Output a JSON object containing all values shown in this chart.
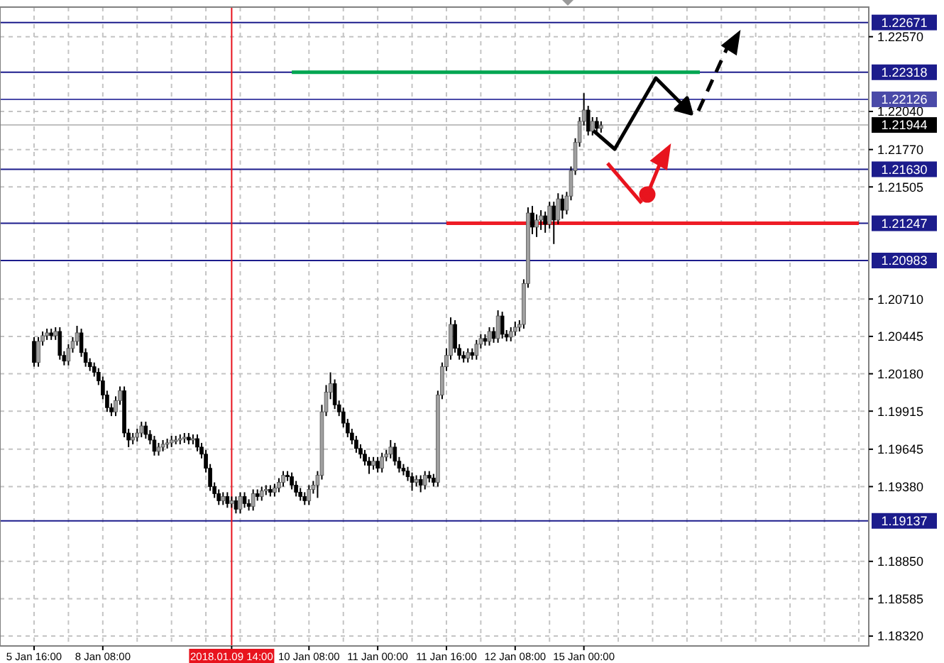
{
  "chart_data": {
    "type": "candlestick",
    "categories": [
      "5 Jan 16:00",
      null,
      null,
      null,
      null,
      null,
      null,
      null,
      null,
      null,
      null,
      null,
      null,
      null,
      null,
      null,
      "8 Jan 08:00",
      null,
      null,
      null,
      null,
      null,
      null,
      null,
      null,
      null,
      null,
      null,
      null,
      null,
      null,
      null,
      null,
      null,
      null,
      null,
      null,
      null,
      null,
      null,
      null,
      null,
      null,
      null,
      null,
      null,
      "2018.01.09 14:00",
      null,
      null,
      null,
      null,
      null,
      null,
      null,
      null,
      null,
      null,
      null,
      null,
      null,
      null,
      null,
      null,
      null,
      "10 Jan 08:00",
      null,
      null,
      null,
      null,
      null,
      null,
      null,
      null,
      null,
      null,
      null,
      null,
      null,
      null,
      null,
      "11 Jan 00:00",
      null,
      null,
      null,
      null,
      null,
      null,
      null,
      null,
      null,
      null,
      null,
      null,
      null,
      null,
      null,
      "11 Jan 16:00",
      null,
      null,
      null,
      null,
      null,
      null,
      null,
      null,
      null,
      null,
      null,
      null,
      null,
      null,
      null,
      "12 Jan 08:00",
      null,
      null,
      null,
      null,
      null,
      null,
      null,
      null,
      null,
      null,
      null,
      null,
      null,
      null,
      null,
      "15 Jan 00:00",
      null,
      null,
      null,
      null,
      null,
      null,
      null,
      null,
      null,
      null,
      null,
      null,
      null,
      null,
      null,
      null,
      null,
      null,
      null,
      null,
      null,
      null,
      null,
      null,
      null,
      null,
      null,
      null,
      null,
      null,
      null,
      null,
      null,
      null,
      null,
      null,
      null,
      null,
      null,
      null,
      null,
      null,
      null,
      null,
      null,
      null,
      null,
      null,
      null,
      null,
      null,
      null,
      null,
      null,
      null,
      null,
      null,
      null,
      null,
      null,
      null,
      null,
      null,
      null,
      null
    ],
    "ohlc": [
      [
        1.2041,
        1.2044,
        1.2023,
        1.2026
      ],
      [
        1.2026,
        1.2044,
        1.2023,
        1.2041
      ],
      [
        1.2041,
        1.2048,
        1.2038,
        1.2045
      ],
      [
        1.2045,
        1.205,
        1.2042,
        1.2047
      ],
      [
        1.2047,
        1.205,
        1.2042,
        1.2045
      ],
      [
        1.2045,
        1.2051,
        1.2042,
        1.2048
      ],
      [
        1.2048,
        1.2051,
        1.2028,
        1.2031
      ],
      [
        1.2031,
        1.2034,
        1.2024,
        1.2027
      ],
      [
        1.2027,
        1.2039,
        1.2024,
        1.2036
      ],
      [
        1.2036,
        1.2044,
        1.2033,
        1.2041
      ],
      [
        1.2041,
        1.2052,
        1.2038,
        1.2047
      ],
      [
        1.2047,
        1.205,
        1.203,
        1.2033
      ],
      [
        1.2033,
        1.2036,
        1.2023,
        1.2026
      ],
      [
        1.2026,
        1.2029,
        1.202,
        1.2023
      ],
      [
        1.2023,
        1.2026,
        1.2016,
        1.2019
      ],
      [
        1.2019,
        1.2022,
        1.201,
        1.2013
      ],
      [
        1.2013,
        1.2016,
        1.2,
        1.2003
      ],
      [
        1.2003,
        1.2006,
        1.1991,
        1.1994
      ],
      [
        1.1994,
        1.1997,
        1.1988,
        1.1991
      ],
      [
        1.1991,
        1.2002,
        1.1988,
        1.1999
      ],
      [
        1.1999,
        1.2009,
        1.1996,
        1.2006
      ],
      [
        1.2006,
        1.2009,
        1.1973,
        1.1976
      ],
      [
        1.1976,
        1.1979,
        1.1966,
        1.1971
      ],
      [
        1.1971,
        1.1976,
        1.1968,
        1.1973
      ],
      [
        1.1973,
        1.1979,
        1.197,
        1.1976
      ],
      [
        1.1976,
        1.1984,
        1.1973,
        1.1981
      ],
      [
        1.1981,
        1.1984,
        1.1972,
        1.1975
      ],
      [
        1.1975,
        1.1978,
        1.1968,
        1.1971
      ],
      [
        1.1971,
        1.1974,
        1.196,
        1.1963
      ],
      [
        1.1963,
        1.1969,
        1.196,
        1.1966
      ],
      [
        1.1966,
        1.1971,
        1.1963,
        1.1968
      ],
      [
        1.1968,
        1.1972,
        1.1965,
        1.1969
      ],
      [
        1.1969,
        1.1974,
        1.1966,
        1.1971
      ],
      [
        1.1971,
        1.1974,
        1.1968,
        1.1971
      ],
      [
        1.1971,
        1.1975,
        1.1968,
        1.1972
      ],
      [
        1.1972,
        1.1976,
        1.1969,
        1.1973
      ],
      [
        1.1973,
        1.1976,
        1.1968,
        1.1971
      ],
      [
        1.1971,
        1.1975,
        1.1968,
        1.1972
      ],
      [
        1.1972,
        1.1975,
        1.1963,
        1.1966
      ],
      [
        1.1966,
        1.1969,
        1.1958,
        1.1961
      ],
      [
        1.1961,
        1.1964,
        1.1948,
        1.1951
      ],
      [
        1.1951,
        1.1954,
        1.1935,
        1.1938
      ],
      [
        1.1938,
        1.1941,
        1.193,
        1.1933
      ],
      [
        1.1933,
        1.1936,
        1.1925,
        1.1928
      ],
      [
        1.1928,
        1.1934,
        1.1925,
        1.1931
      ],
      [
        1.1931,
        1.1934,
        1.1923,
        1.1926
      ],
      [
        1.1926,
        1.1931,
        1.1923,
        1.1928
      ],
      [
        1.1928,
        1.1931,
        1.1919,
        1.1922
      ],
      [
        1.1922,
        1.1934,
        1.1919,
        1.1931
      ],
      [
        1.1931,
        1.1934,
        1.1923,
        1.1926
      ],
      [
        1.1926,
        1.1929,
        1.1921,
        1.1924
      ],
      [
        1.1924,
        1.1936,
        1.1921,
        1.1933
      ],
      [
        1.1933,
        1.1936,
        1.1928,
        1.1931
      ],
      [
        1.1931,
        1.1938,
        1.1928,
        1.1935
      ],
      [
        1.1935,
        1.1939,
        1.1932,
        1.1936
      ],
      [
        1.1936,
        1.1939,
        1.1931,
        1.1934
      ],
      [
        1.1934,
        1.194,
        1.1931,
        1.1937
      ],
      [
        1.1937,
        1.1944,
        1.1934,
        1.1941
      ],
      [
        1.1941,
        1.1949,
        1.1938,
        1.1946
      ],
      [
        1.1946,
        1.1949,
        1.1942,
        1.1945
      ],
      [
        1.1945,
        1.1948,
        1.1936,
        1.1939
      ],
      [
        1.1939,
        1.1942,
        1.1931,
        1.1934
      ],
      [
        1.1934,
        1.1937,
        1.1928,
        1.1931
      ],
      [
        1.1931,
        1.1934,
        1.1925,
        1.1928
      ],
      [
        1.1928,
        1.1939,
        1.1925,
        1.1936
      ],
      [
        1.1936,
        1.1942,
        1.1933,
        1.1939
      ],
      [
        1.1939,
        1.1949,
        1.193,
        1.1946
      ],
      [
        1.1946,
        1.1996,
        1.1943,
        1.1991
      ],
      [
        1.1991,
        1.201,
        1.1988,
        1.2005
      ],
      [
        1.2005,
        1.2019,
        1.2,
        1.2011
      ],
      [
        1.2011,
        1.2014,
        1.1993,
        1.1996
      ],
      [
        1.1996,
        1.1999,
        1.1988,
        1.1991
      ],
      [
        1.1991,
        1.1994,
        1.198,
        1.1983
      ],
      [
        1.1983,
        1.1986,
        1.1973,
        1.1976
      ],
      [
        1.1976,
        1.1979,
        1.1968,
        1.1971
      ],
      [
        1.1971,
        1.1974,
        1.1962,
        1.1965
      ],
      [
        1.1965,
        1.1968,
        1.1958,
        1.1961
      ],
      [
        1.1961,
        1.1964,
        1.1953,
        1.1956
      ],
      [
        1.1956,
        1.1959,
        1.1947,
        1.1953
      ],
      [
        1.1953,
        1.1959,
        1.195,
        1.1956
      ],
      [
        1.1956,
        1.1959,
        1.1948,
        1.1951
      ],
      [
        1.1951,
        1.1962,
        1.1948,
        1.1959
      ],
      [
        1.1959,
        1.1964,
        1.1956,
        1.1961
      ],
      [
        1.1961,
        1.1971,
        1.1958,
        1.1966
      ],
      [
        1.1966,
        1.1969,
        1.1953,
        1.1956
      ],
      [
        1.1956,
        1.1959,
        1.1948,
        1.1951
      ],
      [
        1.1951,
        1.1954,
        1.1946,
        1.1949
      ],
      [
        1.1949,
        1.1952,
        1.1942,
        1.1945
      ],
      [
        1.1945,
        1.1948,
        1.1935,
        1.1941
      ],
      [
        1.1941,
        1.1946,
        1.1938,
        1.1943
      ],
      [
        1.1943,
        1.1946,
        1.1934,
        1.1939
      ],
      [
        1.1939,
        1.1949,
        1.1936,
        1.1946
      ],
      [
        1.1946,
        1.1949,
        1.1941,
        1.1944
      ],
      [
        1.1944,
        1.1947,
        1.1938,
        1.1941
      ],
      [
        1.1941,
        1.2006,
        1.1938,
        1.2003
      ],
      [
        1.2003,
        1.2026,
        1.2,
        1.2023
      ],
      [
        1.2023,
        1.2036,
        1.202,
        1.2031
      ],
      [
        1.2031,
        1.2058,
        1.2028,
        1.2053
      ],
      [
        1.2053,
        1.2056,
        1.2033,
        1.2036
      ],
      [
        1.2036,
        1.2039,
        1.2028,
        1.2031
      ],
      [
        1.2031,
        1.2034,
        1.2026,
        1.2029
      ],
      [
        1.2029,
        1.2036,
        1.2026,
        1.2033
      ],
      [
        1.2033,
        1.2036,
        1.2028,
        1.2031
      ],
      [
        1.2031,
        1.2042,
        1.2028,
        1.2039
      ],
      [
        1.2039,
        1.2046,
        1.2036,
        1.2043
      ],
      [
        1.2043,
        1.2046,
        1.2038,
        1.2041
      ],
      [
        1.2041,
        1.2051,
        1.2038,
        1.2048
      ],
      [
        1.2048,
        1.2051,
        1.204,
        1.2043
      ],
      [
        1.2043,
        1.2063,
        1.204,
        1.2059
      ],
      [
        1.2059,
        1.2062,
        1.2043,
        1.2046
      ],
      [
        1.2046,
        1.2049,
        1.2041,
        1.2044
      ],
      [
        1.2044,
        1.2051,
        1.2041,
        1.2048
      ],
      [
        1.2048,
        1.2055,
        1.2045,
        1.2051
      ],
      [
        1.2051,
        1.2056,
        1.2048,
        1.2053
      ],
      [
        1.2053,
        1.2085,
        1.205,
        1.2082
      ],
      [
        1.2082,
        1.2136,
        1.2079,
        1.2132
      ],
      [
        1.2132,
        1.2137,
        1.2117,
        1.2122
      ],
      [
        1.2122,
        1.2131,
        1.2115,
        1.2127
      ],
      [
        1.2127,
        1.2134,
        1.212,
        1.213
      ],
      [
        1.213,
        1.2133,
        1.2118,
        1.2124
      ],
      [
        1.2124,
        1.214,
        1.2121,
        1.2137
      ],
      [
        1.2137,
        1.214,
        1.211,
        1.2127
      ],
      [
        1.2127,
        1.2146,
        1.2124,
        1.2142
      ],
      [
        1.2142,
        1.2145,
        1.2128,
        1.2134
      ],
      [
        1.2134,
        1.2147,
        1.2131,
        1.2144
      ],
      [
        1.2144,
        1.2165,
        1.2141,
        1.2162
      ],
      [
        1.2162,
        1.2185,
        1.2159,
        1.2182
      ],
      [
        1.2182,
        1.22,
        1.2179,
        1.2197
      ],
      [
        1.2197,
        1.2217,
        1.2194,
        1.2205
      ],
      [
        1.2205,
        1.2208,
        1.2187,
        1.219
      ],
      [
        1.219,
        1.22,
        1.2187,
        1.2197
      ],
      [
        1.2197,
        1.22,
        1.2189,
        1.2192
      ],
      [
        1.2192,
        1.2197,
        1.2189,
        1.2194
      ],
      null,
      null,
      null,
      null,
      null,
      null,
      null,
      null,
      null,
      null,
      null,
      null,
      null,
      null,
      null,
      null,
      null,
      null,
      null,
      null,
      null,
      null,
      null,
      null,
      null,
      null,
      null,
      null,
      null,
      null,
      null,
      null,
      null,
      null,
      null,
      null,
      null,
      null,
      null,
      null,
      null,
      null,
      null,
      null,
      null,
      null,
      null,
      null,
      null,
      null,
      null,
      null,
      null,
      null,
      null,
      null,
      null,
      null,
      null,
      null,
      null
    ],
    "series": [
      {
        "type": "line",
        "color": "#00a651",
        "values": [
          null,
          null,
          null,
          null,
          null,
          null,
          null,
          null,
          null,
          null,
          null,
          null,
          null,
          null,
          null,
          null,
          null,
          null,
          null,
          null,
          null,
          null,
          null,
          null,
          null,
          null,
          null,
          null,
          null,
          null,
          null,
          null,
          null,
          null,
          null,
          null,
          null,
          null,
          null,
          null,
          null,
          null,
          null,
          null,
          null,
          null,
          null,
          null,
          null,
          null,
          null,
          null,
          null,
          null,
          null,
          null,
          null,
          null,
          null,
          null,
          1.22318,
          1.22318,
          1.22318,
          1.22318,
          1.22318,
          1.22318,
          1.22318,
          1.22318,
          1.22318,
          1.22318,
          1.22318,
          1.22318,
          1.22318,
          1.22318,
          1.22318,
          1.22318,
          1.22318,
          1.22318,
          1.22318,
          1.22318,
          1.22318,
          1.22318,
          1.22318,
          1.22318,
          1.22318,
          1.22318,
          1.22318,
          1.22318,
          1.22318,
          1.22318,
          1.22318,
          1.22318,
          1.22318,
          1.22318,
          1.22318,
          1.22318,
          1.22318,
          1.22318,
          1.22318,
          1.22318,
          1.22318,
          1.22318,
          1.22318,
          1.22318,
          1.22318,
          1.22318,
          1.22318,
          1.22318,
          1.22318,
          1.22318,
          1.22318,
          1.22318,
          1.22318,
          1.22318,
          1.22318,
          1.22318,
          1.22318,
          1.22318,
          1.22318,
          1.22318,
          1.22318,
          1.22318,
          1.22318,
          1.22318,
          1.22318,
          1.22318,
          1.22318,
          1.22318,
          1.22318,
          1.22318,
          1.22318,
          1.22318,
          1.22318,
          1.22318,
          1.22318,
          1.22318,
          1.22318,
          1.22318,
          1.22318,
          1.22318,
          1.22318,
          1.22318,
          1.22318,
          1.22318,
          1.22318,
          1.22318,
          1.22318,
          1.22318,
          1.22318,
          1.22318,
          1.22318,
          1.22318,
          1.22318,
          1.22318,
          1.22318,
          1.22318,
          null,
          null,
          null,
          null,
          null,
          null,
          null,
          null,
          null,
          null,
          null,
          null,
          null,
          null,
          null,
          null,
          null,
          null,
          null,
          null,
          null,
          null,
          null,
          null,
          null,
          null,
          null,
          null,
          null,
          null,
          null,
          null,
          null,
          null,
          null,
          null,
          null,
          null
        ]
      },
      {
        "type": "line",
        "color": "#ee1c25",
        "values": [
          null,
          null,
          null,
          null,
          null,
          null,
          null,
          null,
          null,
          null,
          null,
          null,
          null,
          null,
          null,
          null,
          null,
          null,
          null,
          null,
          null,
          null,
          null,
          null,
          null,
          null,
          null,
          null,
          null,
          null,
          null,
          null,
          null,
          null,
          null,
          null,
          null,
          null,
          null,
          null,
          null,
          null,
          null,
          null,
          null,
          null,
          null,
          null,
          null,
          null,
          null,
          null,
          null,
          null,
          null,
          null,
          null,
          null,
          null,
          null,
          null,
          null,
          null,
          null,
          null,
          null,
          null,
          null,
          null,
          null,
          null,
          null,
          null,
          null,
          null,
          null,
          null,
          null,
          null,
          null,
          null,
          null,
          null,
          null,
          null,
          null,
          null,
          null,
          null,
          null,
          null,
          null,
          null,
          null,
          null,
          null,
          1.21247,
          1.21247,
          1.21247,
          1.21247,
          1.21247,
          1.21247,
          1.21247,
          1.21247,
          1.21247,
          1.21247,
          1.21247,
          1.21247,
          1.21247,
          1.21247,
          1.21247,
          1.21247,
          1.21247,
          1.21247,
          1.21247,
          1.21247,
          1.21247,
          1.21247,
          1.21247,
          1.21247,
          1.21247,
          1.21247,
          1.21247,
          1.21247,
          1.21247,
          1.21247,
          1.21247,
          1.21247,
          1.21247,
          1.21247,
          1.21247,
          1.21247,
          1.21247,
          1.21247,
          1.21247,
          1.21247,
          1.21247,
          1.21247,
          1.21247,
          1.21247,
          1.21247,
          1.21247,
          1.21247,
          1.21247,
          1.21247,
          1.21247,
          1.21247,
          1.21247,
          1.21247,
          1.21247,
          1.21247,
          1.21247,
          1.21247,
          1.21247,
          1.21247,
          1.21247,
          1.21247,
          1.21247,
          1.21247,
          1.21247,
          1.21247,
          1.21247,
          1.21247,
          1.21247,
          1.21247,
          1.21247,
          1.21247,
          1.21247,
          1.21247,
          1.21247,
          1.21247,
          1.21247,
          1.21247,
          1.21247,
          1.21247,
          1.21247,
          1.21247,
          1.21247,
          1.21247,
          1.21247,
          1.21247,
          1.21247,
          1.21247,
          1.21247,
          1.21247,
          1.21247,
          1.21247,
          1.21247,
          1.21247,
          1.21247,
          1.21247,
          1.21247,
          1.21247,
          null
        ]
      }
    ],
    "ylim": [
      1.1825,
      1.2278
    ],
    "yticks": [
      {
        "value": 1.2257,
        "label": "1.22570"
      },
      {
        "value": 1.2204,
        "label": "1.22040"
      },
      {
        "value": 1.2177,
        "label": "1.21770"
      },
      {
        "value": 1.21505,
        "label": "1.21505"
      },
      {
        "value": 1.2071,
        "label": "1.20710"
      },
      {
        "value": 1.20445,
        "label": "1.20445"
      },
      {
        "value": 1.2018,
        "label": "1.20180"
      },
      {
        "value": 1.19915,
        "label": "1.19915"
      },
      {
        "value": 1.19645,
        "label": "1.19645"
      },
      {
        "value": 1.1938,
        "label": "1.19380"
      },
      {
        "value": 1.1885,
        "label": "1.18850"
      },
      {
        "value": 1.18585,
        "label": "1.18585"
      },
      {
        "value": 1.1832,
        "label": "1.18320"
      }
    ],
    "ref_lines": [
      {
        "axis": "y",
        "value": 1.22671,
        "label": "1.22671",
        "color": "#1c1c8c"
      },
      {
        "axis": "y",
        "value": 1.22318,
        "label": "1.22318",
        "color": "#1c1c8c"
      },
      {
        "axis": "y",
        "value": 1.22126,
        "label": "1.22126",
        "color": "#4a4aa8"
      },
      {
        "axis": "y",
        "value": 1.21944,
        "label": "1.21944",
        "color": "#c0c0c0"
      },
      {
        "axis": "y",
        "value": 1.2163,
        "label": "1.21630",
        "color": "#1c1c8c"
      },
      {
        "axis": "y",
        "value": 1.21247,
        "label": "1.21247",
        "color": "#1c1c8c"
      },
      {
        "axis": "y",
        "value": 1.20983,
        "label": "1.20983",
        "color": "#1c1c8c"
      },
      {
        "axis": "y",
        "value": 1.19137,
        "label": "1.19137",
        "color": "#1c1c8c"
      },
      {
        "axis": "x",
        "value": "2018.01.09 14:00",
        "color": "#e8141e"
      }
    ],
    "grid": true
  }
}
